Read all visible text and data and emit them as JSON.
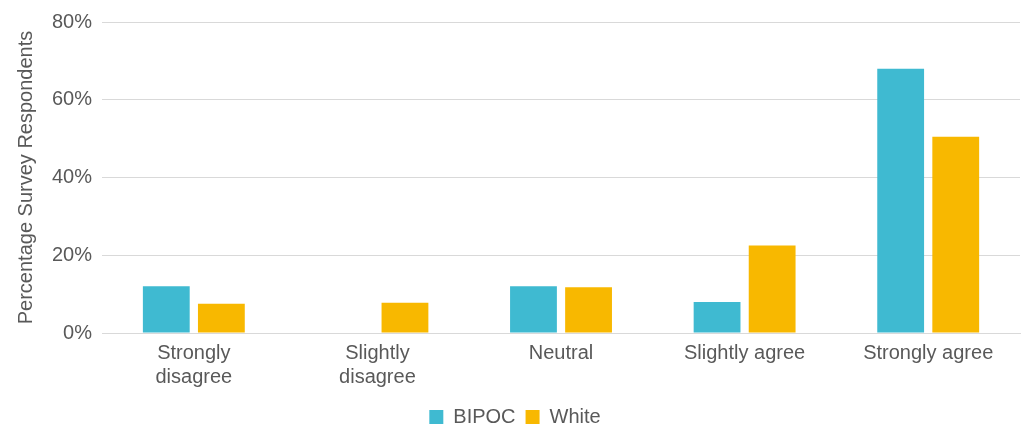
{
  "chart_data": {
    "type": "bar",
    "ylabel": "Percentage Survey Respondents",
    "categories": [
      "Strongly disagree",
      "Slightly disagree",
      "Neutral",
      "Slightly agree",
      "Strongly agree"
    ],
    "series": [
      {
        "name": "BIPOC",
        "color": "#3fbad1",
        "values": [
          12,
          0,
          12,
          8,
          68
        ]
      },
      {
        "name": "White",
        "color": "#f8b800",
        "values": [
          7.5,
          7.8,
          11.8,
          22.5,
          50.5
        ]
      }
    ],
    "ylim": [
      0,
      80
    ],
    "yticks": [
      {
        "value": 0,
        "label": "0%"
      },
      {
        "value": 20,
        "label": "20%"
      },
      {
        "value": 40,
        "label": "40%"
      },
      {
        "value": 60,
        "label": "60%"
      },
      {
        "value": 80,
        "label": "80%"
      }
    ],
    "grid": "y",
    "legend": "bottom"
  }
}
